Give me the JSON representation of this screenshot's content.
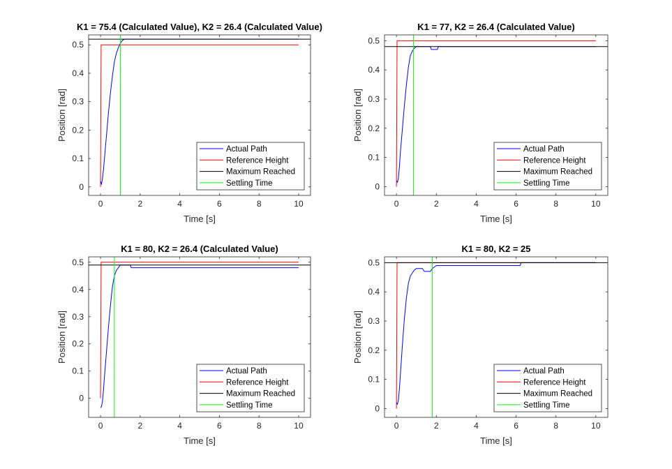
{
  "legend_labels": [
    "Actual Path",
    "Reference Height",
    "Maximum Reached",
    "Settling Time"
  ],
  "colors": {
    "actual": "#0000ff",
    "reference": "#ff0000",
    "maximum": "#000000",
    "settling": "#00ff00",
    "axes": "#262626",
    "background": "#ffffff"
  },
  "chart_data": [
    {
      "type": "line",
      "title": "K1 = 75.4 (Calculated Value), K2 = 26.4 (Calculated Value)",
      "xlabel": "Time [s]",
      "ylabel": "Position [rad]",
      "xlim": [
        -0.6,
        10.6
      ],
      "ylim": [
        -0.03,
        0.535
      ],
      "xticks": [
        0,
        2,
        4,
        6,
        8,
        10
      ],
      "yticks": [
        0,
        0.1,
        0.2,
        0.3,
        0.4,
        0.5
      ],
      "legend_position": "bottom-right",
      "series": [
        {
          "name": "Actual Path",
          "x": [
            0,
            0.05,
            0.1,
            0.15,
            0.2,
            0.3,
            0.4,
            0.5,
            0.6,
            0.7,
            0.8,
            0.9,
            1.0,
            1.1,
            1.2,
            1.3,
            10
          ],
          "y": [
            0.02,
            0.01,
            0.03,
            0.06,
            0.1,
            0.18,
            0.26,
            0.33,
            0.39,
            0.44,
            0.47,
            0.49,
            0.505,
            0.515,
            0.52,
            0.52,
            0.52
          ]
        },
        {
          "name": "Reference Height",
          "x": [
            0,
            0.03,
            10
          ],
          "y": [
            0,
            0.5,
            0.5
          ]
        },
        {
          "name": "Maximum Reached",
          "x": [
            -0.6,
            10.6
          ],
          "y": [
            0.52,
            0.52
          ]
        },
        {
          "name": "Settling Time",
          "x": [
            1.0,
            1.0
          ],
          "y": [
            -0.03,
            0.535
          ]
        }
      ]
    },
    {
      "type": "line",
      "title": "K1 = 77, K2 = 26.4 (Calculated Value)",
      "xlabel": "Time [s]",
      "ylabel": "Position [rad]",
      "xlim": [
        -0.6,
        10.6
      ],
      "ylim": [
        -0.03,
        0.52
      ],
      "xticks": [
        0,
        2,
        4,
        6,
        8,
        10
      ],
      "yticks": [
        0,
        0.1,
        0.2,
        0.3,
        0.4,
        0.5
      ],
      "legend_position": "bottom-right",
      "series": [
        {
          "name": "Actual Path",
          "x": [
            0,
            0.05,
            0.1,
            0.15,
            0.2,
            0.3,
            0.4,
            0.5,
            0.6,
            0.7,
            0.8,
            0.9,
            1.0,
            1.1,
            1.7,
            1.75,
            2.05,
            2.1,
            10
          ],
          "y": [
            0.02,
            0.015,
            0.03,
            0.07,
            0.12,
            0.2,
            0.28,
            0.35,
            0.41,
            0.45,
            0.465,
            0.475,
            0.48,
            0.48,
            0.48,
            0.47,
            0.47,
            0.48,
            0.48
          ]
        },
        {
          "name": "Reference Height",
          "x": [
            0,
            0.03,
            10
          ],
          "y": [
            0,
            0.5,
            0.5
          ]
        },
        {
          "name": "Maximum Reached",
          "x": [
            -0.6,
            10.6
          ],
          "y": [
            0.48,
            0.48
          ]
        },
        {
          "name": "Settling Time",
          "x": [
            0.85,
            0.85
          ],
          "y": [
            -0.03,
            0.52
          ]
        }
      ]
    },
    {
      "type": "line",
      "title": "K1 = 80, K2 = 26.4 (Calculated Value)",
      "xlabel": "Time [s]",
      "ylabel": "Position [rad]",
      "xlim": [
        -0.6,
        10.6
      ],
      "ylim": [
        -0.07,
        0.52
      ],
      "xticks": [
        0,
        2,
        4,
        6,
        8,
        10
      ],
      "yticks": [
        0,
        0.1,
        0.2,
        0.3,
        0.4,
        0.5
      ],
      "legend_position": "bottom-right",
      "series": [
        {
          "name": "Actual Path",
          "x": [
            0,
            0.05,
            0.1,
            0.15,
            0.2,
            0.3,
            0.4,
            0.5,
            0.6,
            0.7,
            0.8,
            0.9,
            1.0,
            1.1,
            1.5,
            1.55,
            10
          ],
          "y": [
            -0.035,
            -0.03,
            -0.01,
            0.03,
            0.08,
            0.17,
            0.26,
            0.34,
            0.41,
            0.45,
            0.47,
            0.48,
            0.49,
            0.49,
            0.49,
            0.48,
            0.48
          ]
        },
        {
          "name": "Reference Height",
          "x": [
            0,
            0.03,
            10
          ],
          "y": [
            0,
            0.5,
            0.5
          ]
        },
        {
          "name": "Maximum Reached",
          "x": [
            -0.6,
            10.6
          ],
          "y": [
            0.49,
            0.49
          ]
        },
        {
          "name": "Settling Time",
          "x": [
            0.7,
            0.7
          ],
          "y": [
            -0.07,
            0.52
          ]
        }
      ]
    },
    {
      "type": "line",
      "title": "K1 = 80, K2 = 25",
      "xlabel": "Time [s]",
      "ylabel": "Position [rad]",
      "xlim": [
        -0.6,
        10.6
      ],
      "ylim": [
        -0.03,
        0.52
      ],
      "xticks": [
        0,
        2,
        4,
        6,
        8,
        10
      ],
      "yticks": [
        0,
        0.1,
        0.2,
        0.3,
        0.4,
        0.5
      ],
      "legend_position": "bottom-right",
      "series": [
        {
          "name": "Actual Path",
          "x": [
            0,
            0.05,
            0.1,
            0.15,
            0.2,
            0.3,
            0.4,
            0.5,
            0.6,
            0.7,
            0.8,
            0.9,
            1.0,
            1.3,
            1.4,
            1.7,
            1.8,
            1.9,
            2.0,
            6.2,
            6.25,
            10
          ],
          "y": [
            0.02,
            0.015,
            0.03,
            0.07,
            0.12,
            0.22,
            0.31,
            0.38,
            0.43,
            0.455,
            0.465,
            0.475,
            0.48,
            0.48,
            0.47,
            0.47,
            0.48,
            0.485,
            0.49,
            0.49,
            0.5,
            0.5
          ]
        },
        {
          "name": "Reference Height",
          "x": [
            0,
            0.03,
            10
          ],
          "y": [
            0,
            0.5,
            0.5
          ]
        },
        {
          "name": "Maximum Reached",
          "x": [
            -0.6,
            10.6
          ],
          "y": [
            0.5,
            0.5
          ]
        },
        {
          "name": "Settling Time",
          "x": [
            1.8,
            1.8
          ],
          "y": [
            -0.03,
            0.52
          ]
        }
      ]
    }
  ]
}
